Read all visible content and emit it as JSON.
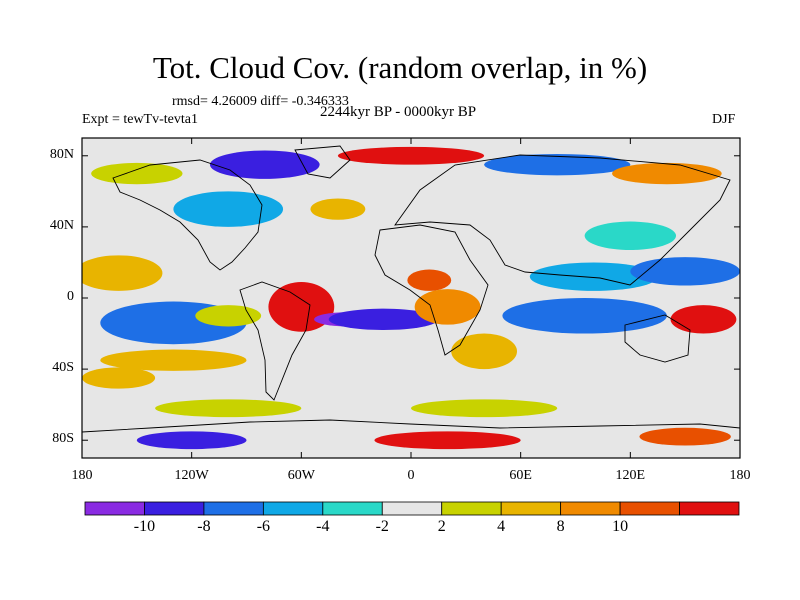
{
  "title": "Tot. Cloud Cov. (random overlap, in %)",
  "stats": "rmsd= 4.26009 diff= -0.346333",
  "experiment": "Expt = tewTv-tevta1",
  "period": "2244kyr BP - 0000kyr BP",
  "season": "DJF",
  "lat_ticks": [
    {
      "label": "80N",
      "lat": 80
    },
    {
      "label": "40N",
      "lat": 40
    },
    {
      "label": "0",
      "lat": 0
    },
    {
      "label": "40S",
      "lat": -40
    },
    {
      "label": "80S",
      "lat": -80
    }
  ],
  "lon_ticks": [
    {
      "label": "180",
      "lon": -180
    },
    {
      "label": "120W",
      "lon": -120
    },
    {
      "label": "60W",
      "lon": -60
    },
    {
      "label": "0",
      "lon": 0
    },
    {
      "label": "60E",
      "lon": 60
    },
    {
      "label": "120E",
      "lon": 120
    },
    {
      "label": "180",
      "lon": 180
    }
  ],
  "colorbar": {
    "colors": [
      "#8a2be2",
      "#3a1fe0",
      "#1e6fe6",
      "#10a8e6",
      "#2ad8c8",
      "#e6e6e6",
      "#c8d200",
      "#e8b400",
      "#f08a00",
      "#e85000",
      "#e01010"
    ],
    "labels": [
      "-10",
      "-8",
      "-6",
      "-4",
      "-2",
      "2",
      "4",
      "8",
      "10"
    ]
  },
  "anomaly_regions": [
    {
      "lon": -160,
      "lat": 12,
      "rlon": 14,
      "rlat": 6,
      "level": 10
    },
    {
      "lon": -160,
      "lat": 14,
      "rlon": 24,
      "rlat": 10,
      "level": 7
    },
    {
      "lon": -140,
      "lat": -15,
      "rlon": 25,
      "rlat": 8,
      "level": 0
    },
    {
      "lon": -130,
      "lat": -14,
      "rlon": 40,
      "rlat": 12,
      "level": 2
    },
    {
      "lon": -130,
      "lat": -35,
      "rlon": 40,
      "rlat": 6,
      "level": 7
    },
    {
      "lon": -100,
      "lat": -10,
      "rlon": 18,
      "rlat": 6,
      "level": 6
    },
    {
      "lon": -60,
      "lat": -5,
      "rlon": 18,
      "rlat": 14,
      "level": 10
    },
    {
      "lon": -35,
      "lat": -12,
      "rlon": 18,
      "rlat": 4,
      "level": 0
    },
    {
      "lon": -15,
      "lat": -12,
      "rlon": 30,
      "rlat": 6,
      "level": 1
    },
    {
      "lon": 10,
      "lat": 10,
      "rlon": 12,
      "rlat": 6,
      "level": 9
    },
    {
      "lon": 20,
      "lat": -5,
      "rlon": 18,
      "rlat": 10,
      "level": 8
    },
    {
      "lon": 40,
      "lat": -30,
      "rlon": 18,
      "rlat": 10,
      "level": 7
    },
    {
      "lon": 90,
      "lat": -10,
      "rlon": 25,
      "rlat": 6,
      "level": 0
    },
    {
      "lon": 95,
      "lat": -10,
      "rlon": 45,
      "rlat": 10,
      "level": 2
    },
    {
      "lon": 100,
      "lat": 12,
      "rlon": 35,
      "rlat": 8,
      "level": 3
    },
    {
      "lon": 150,
      "lat": 15,
      "rlon": 30,
      "rlat": 8,
      "level": 2
    },
    {
      "lon": 160,
      "lat": -12,
      "rlon": 18,
      "rlat": 8,
      "level": 10
    },
    {
      "lon": 120,
      "lat": 35,
      "rlon": 25,
      "rlat": 8,
      "level": 4
    },
    {
      "lon": -40,
      "lat": 50,
      "rlon": 15,
      "rlat": 6,
      "level": 7
    },
    {
      "lon": -100,
      "lat": 50,
      "rlon": 30,
      "rlat": 10,
      "level": 3
    },
    {
      "lon": -80,
      "lat": 75,
      "rlon": 30,
      "rlat": 8,
      "level": 1
    },
    {
      "lon": 0,
      "lat": 80,
      "rlon": 40,
      "rlat": 5,
      "level": 10
    },
    {
      "lon": -150,
      "lat": 70,
      "rlon": 25,
      "rlat": 6,
      "level": 6
    },
    {
      "lon": 80,
      "lat": 75,
      "rlon": 40,
      "rlat": 6,
      "level": 2
    },
    {
      "lon": 140,
      "lat": 70,
      "rlon": 30,
      "rlat": 6,
      "level": 8
    },
    {
      "lon": -100,
      "lat": -62,
      "rlon": 40,
      "rlat": 5,
      "level": 6
    },
    {
      "lon": 40,
      "lat": -62,
      "rlon": 40,
      "rlat": 5,
      "level": 6
    },
    {
      "lon": -120,
      "lat": -80,
      "rlon": 30,
      "rlat": 5,
      "level": 1
    },
    {
      "lon": 20,
      "lat": -80,
      "rlon": 40,
      "rlat": 5,
      "level": 10
    },
    {
      "lon": 150,
      "lat": -78,
      "rlon": 25,
      "rlat": 5,
      "level": 9
    },
    {
      "lon": -160,
      "lat": -45,
      "rlon": 20,
      "rlat": 6,
      "level": 7
    }
  ]
}
